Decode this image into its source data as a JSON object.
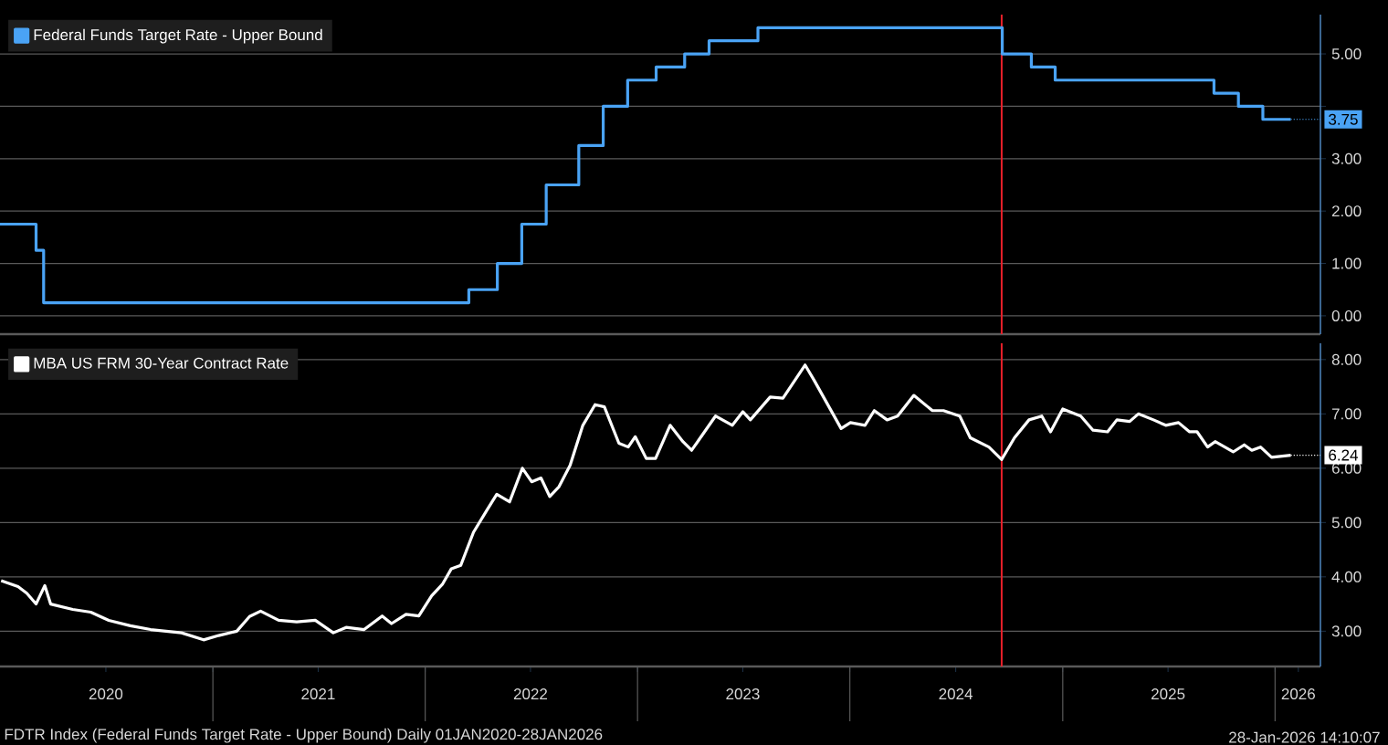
{
  "chart_data": [
    {
      "type": "step",
      "xlim": [
        "2020-01-01",
        "2026-03-20"
      ],
      "ylim": [
        -0.35,
        5.75
      ],
      "yticks": [
        {
          "value": 0,
          "label": "0.00"
        },
        {
          "value": 1,
          "label": "1.00"
        },
        {
          "value": 2,
          "label": "2.00"
        },
        {
          "value": 3,
          "label": "3.00"
        },
        {
          "value": 4,
          "label": null
        },
        {
          "value": 5,
          "label": "5.00"
        }
      ],
      "tick_labels": "y",
      "grid": "y",
      "legend": "top left",
      "series": [
        {
          "name": "Federal Funds Target Rate - Upper Bound",
          "color": "#4aa3f5",
          "x": [
            "2020-01-01",
            "2020-03-03",
            "2020-03-16",
            "2022-03-17",
            "2022-05-05",
            "2022-06-16",
            "2022-07-28",
            "2022-09-22",
            "2022-11-03",
            "2022-12-15",
            "2023-02-02",
            "2023-03-23",
            "2023-05-04",
            "2023-07-27",
            "2024-09-19",
            "2024-11-08",
            "2024-12-19",
            "2025-09-18",
            "2025-10-30",
            "2025-12-11",
            "2026-01-28"
          ],
          "values": [
            1.75,
            1.25,
            0.25,
            0.5,
            1.0,
            1.75,
            2.5,
            3.25,
            4.0,
            4.5,
            4.75,
            5.0,
            5.25,
            5.5,
            5.0,
            4.75,
            4.5,
            4.25,
            4.0,
            3.75,
            3.75
          ]
        }
      ],
      "ref_lines": [
        {
          "axis": "x",
          "value": "2024-09-18",
          "color": "#e8202a"
        }
      ],
      "annotations": [
        {
          "text": "3.75",
          "x": "2026-01-28",
          "y": 3.75
        }
      ]
    },
    {
      "type": "line",
      "xlim": [
        "2020-01-01",
        "2026-03-20"
      ],
      "ylim": [
        2.35,
        8.3
      ],
      "xticks": [
        {
          "value": "2020-07-01",
          "label": "2020"
        },
        {
          "value": "2021-01-01",
          "label": null
        },
        {
          "value": "2021-07-01",
          "label": "2021"
        },
        {
          "value": "2022-01-01",
          "label": null
        },
        {
          "value": "2022-07-01",
          "label": "2022"
        },
        {
          "value": "2023-01-01",
          "label": null
        },
        {
          "value": "2023-07-01",
          "label": "2023"
        },
        {
          "value": "2024-01-01",
          "label": null
        },
        {
          "value": "2024-07-01",
          "label": "2024"
        },
        {
          "value": "2025-01-01",
          "label": null
        },
        {
          "value": "2025-07-01",
          "label": "2025"
        },
        {
          "value": "2026-01-01",
          "label": null
        },
        {
          "value": "2026-02-10",
          "label": "2026"
        }
      ],
      "yticks": [
        {
          "value": 3,
          "label": "3.00"
        },
        {
          "value": 4,
          "label": "4.00"
        },
        {
          "value": 5,
          "label": "5.00"
        },
        {
          "value": 6,
          "label": "6.00"
        },
        {
          "value": 7,
          "label": "7.00"
        },
        {
          "value": 8,
          "label": "8.00"
        }
      ],
      "grid": "y",
      "legend": "top left",
      "series": [
        {
          "name": "MBA US FRM 30-Year Contract Rate",
          "color": "#ffffff",
          "x": [
            "2020-01-03",
            "2020-02-01",
            "2020-02-16",
            "2020-03-03",
            "2020-03-18",
            "2020-03-28",
            "2020-05-05",
            "2020-06-05",
            "2020-07-06",
            "2020-08-12",
            "2020-09-16",
            "2020-11-08",
            "2020-12-16",
            "2021-01-11",
            "2021-02-11",
            "2021-03-05",
            "2021-03-24",
            "2021-04-24",
            "2021-05-25",
            "2021-06-26",
            "2021-07-27",
            "2021-08-18",
            "2021-09-18",
            "2021-10-19",
            "2021-11-04",
            "2021-11-29",
            "2021-12-21",
            "2022-01-12",
            "2022-01-31",
            "2022-02-15",
            "2022-03-03",
            "2022-03-25",
            "2022-04-16",
            "2022-05-04",
            "2022-05-26",
            "2022-06-17",
            "2022-07-03",
            "2022-07-19",
            "2022-08-03",
            "2022-08-19",
            "2022-09-07",
            "2022-09-29",
            "2022-10-20",
            "2022-11-05",
            "2022-11-30",
            "2022-12-16",
            "2022-12-28",
            "2023-01-16",
            "2023-02-01",
            "2023-02-26",
            "2023-03-20",
            "2023-04-04",
            "2023-05-15",
            "2023-06-13",
            "2023-07-01",
            "2023-07-14",
            "2023-08-17",
            "2023-09-08",
            "2023-10-16",
            "2023-10-31",
            "2023-12-17",
            "2024-01-02",
            "2024-01-27",
            "2024-02-12",
            "2024-03-05",
            "2024-03-23",
            "2024-04-20",
            "2024-05-22",
            "2024-06-10",
            "2024-07-08",
            "2024-07-26",
            "2024-08-27",
            "2024-09-18",
            "2024-10-10",
            "2024-11-04",
            "2024-11-26",
            "2024-12-11",
            "2025-01-01",
            "2025-02-01",
            "2025-02-22",
            "2025-03-19",
            "2025-04-04",
            "2025-04-26",
            "2025-05-11",
            "2025-06-06",
            "2025-06-27",
            "2025-07-19",
            "2025-08-07",
            "2025-08-20",
            "2025-09-07",
            "2025-09-20",
            "2025-10-21",
            "2025-11-09",
            "2025-11-22",
            "2025-12-07",
            "2025-12-26",
            "2026-01-28"
          ],
          "values": [
            3.93,
            3.82,
            3.7,
            3.5,
            3.84,
            3.5,
            3.4,
            3.35,
            3.2,
            3.1,
            3.03,
            2.97,
            2.84,
            2.92,
            3.0,
            3.27,
            3.37,
            3.2,
            3.17,
            3.2,
            2.97,
            3.07,
            3.03,
            3.28,
            3.14,
            3.31,
            3.28,
            3.65,
            3.87,
            4.15,
            4.21,
            4.82,
            5.21,
            5.52,
            5.38,
            6.0,
            5.75,
            5.82,
            5.48,
            5.66,
            6.05,
            6.79,
            7.17,
            7.13,
            6.46,
            6.39,
            6.58,
            6.18,
            6.18,
            6.79,
            6.49,
            6.33,
            6.96,
            6.79,
            7.04,
            6.89,
            7.31,
            7.29,
            7.9,
            7.63,
            6.73,
            6.84,
            6.79,
            7.06,
            6.89,
            6.96,
            7.34,
            7.06,
            7.06,
            6.96,
            6.56,
            6.39,
            6.16,
            6.56,
            6.89,
            6.96,
            6.67,
            7.09,
            6.96,
            6.7,
            6.67,
            6.89,
            6.86,
            7.0,
            6.89,
            6.79,
            6.84,
            6.67,
            6.67,
            6.39,
            6.49,
            6.3,
            6.43,
            6.33,
            6.39,
            6.2,
            6.24
          ]
        }
      ],
      "ref_lines": [
        {
          "axis": "x",
          "value": "2024-09-18",
          "color": "#e8202a"
        }
      ],
      "annotations": [
        {
          "text": "6.24",
          "x": "2026-01-28",
          "y": 6.24
        },
        "FDTR Index (Federal Funds Target Rate - Upper Bound) Daily 01JAN2020-28JAN2026",
        "28-Jan-2026 14:10:07"
      ]
    }
  ]
}
